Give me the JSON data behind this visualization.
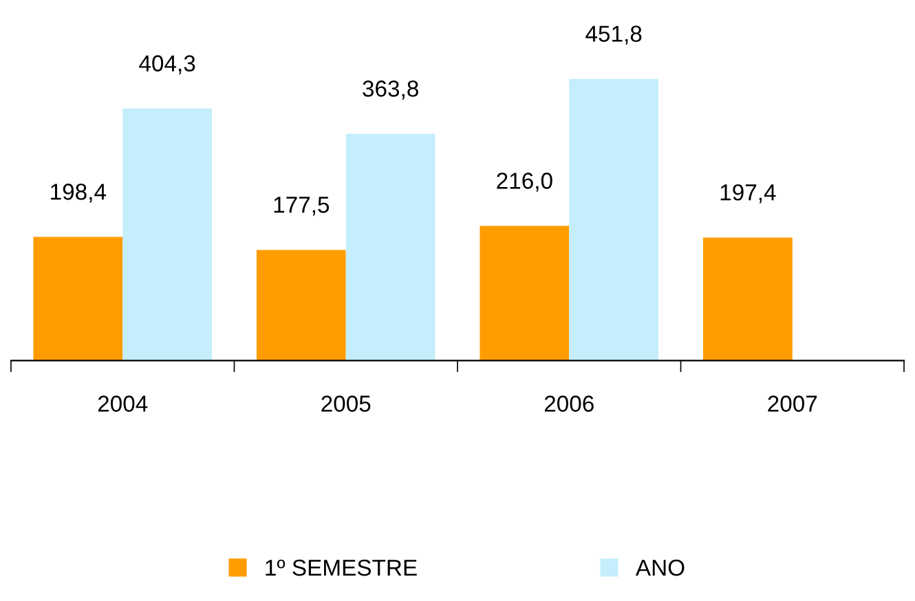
{
  "chart_data": {
    "type": "bar",
    "categories": [
      "2004",
      "2005",
      "2006",
      "2007"
    ],
    "series": [
      {
        "name": "1º SEMESTRE",
        "color": "#ff9c00",
        "values": [
          198.4,
          177.5,
          216.0,
          197.4
        ],
        "value_labels": [
          "198,4",
          "177,5",
          "216,0",
          "197,4"
        ]
      },
      {
        "name": "ANO",
        "color": "#c4eefc",
        "values": [
          404.3,
          363.8,
          451.8,
          null
        ],
        "value_labels": [
          "404,3",
          "363,8",
          "451,8",
          null
        ]
      }
    ],
    "legend": "bottom",
    "grid": false
  }
}
